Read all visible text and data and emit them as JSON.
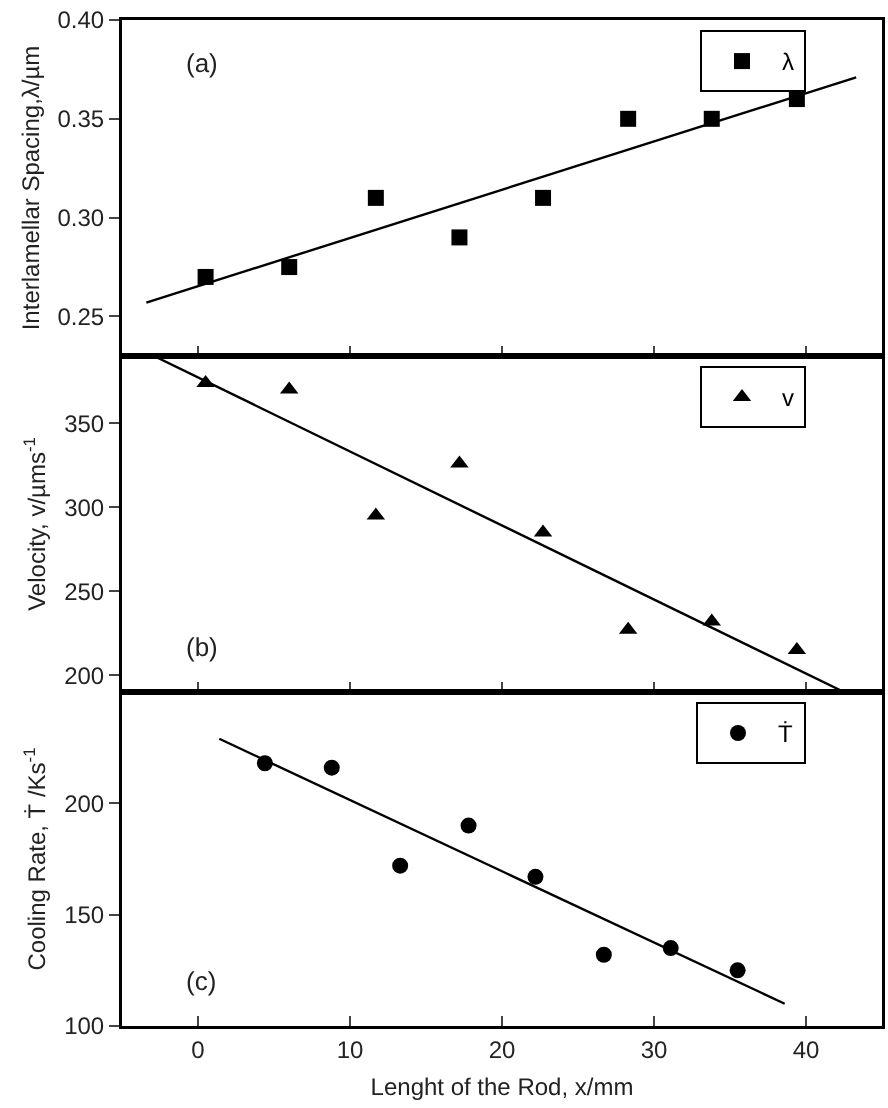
{
  "chart_data": [
    {
      "type": "scatter",
      "ylabel": "Interlamellar Spacing,λ/µm",
      "annotations": [
        "(a)"
      ],
      "xlim": [
        -5,
        45
      ],
      "xticks": [
        0,
        10,
        20,
        30,
        40
      ],
      "ylim": [
        0.23,
        0.4
      ],
      "yticks": [
        {
          "value": 0.25,
          "label": "0.25"
        },
        {
          "value": 0.3,
          "label": "0.30"
        },
        {
          "value": 0.35,
          "label": "0.35"
        },
        {
          "value": 0.4,
          "label": "0.40"
        }
      ],
      "tick_labels": "y",
      "legend": "top right",
      "grid": false,
      "series": [
        {
          "name": "λ",
          "marker": "square",
          "color": "#000000",
          "x": [
            0.5,
            6,
            11.7,
            17.2,
            22.7,
            28.3,
            33.8,
            39.4
          ],
          "values": [
            0.27,
            0.275,
            0.31,
            0.29,
            0.31,
            0.35,
            0.35,
            0.36
          ]
        },
        {
          "type": "line",
          "color": "#000000",
          "x": [
            -3.4,
            43.3
          ],
          "values": [
            0.257,
            0.371
          ]
        }
      ]
    },
    {
      "type": "scatter",
      "ylabel": "Velocity, v/µms$^{-1}$",
      "annotations": [
        "(b)"
      ],
      "xlim": [
        -5,
        45
      ],
      "xticks": [
        0,
        10,
        20,
        30,
        40
      ],
      "ylim": [
        190,
        390
      ],
      "yticks": [
        200,
        250,
        300,
        350
      ],
      "tick_labels": "y",
      "legend": "top right",
      "grid": false,
      "series": [
        {
          "name": "v",
          "marker": "triangle",
          "color": "#000000",
          "x": [
            0.5,
            6,
            11.7,
            17.2,
            22.7,
            28.3,
            33.8,
            39.4
          ],
          "values": [
            374,
            370,
            295,
            326,
            285,
            227,
            232,
            215
          ]
        },
        {
          "type": "line",
          "color": "#000000",
          "x": [
            -2.9,
            42.5
          ],
          "values": [
            390,
            190
          ]
        }
      ]
    },
    {
      "type": "scatter",
      "xlabel": "Lenght of the Rod, x/mm",
      "ylabel": "Cooling Rate, Ṫ /Ks$^{-1}$",
      "annotations": [
        "(c)"
      ],
      "xlim": [
        -5,
        45
      ],
      "xticks": [
        0,
        10,
        20,
        30,
        40
      ],
      "ylim": [
        100,
        250
      ],
      "yticks": [
        100,
        150,
        200
      ],
      "legend": "top right",
      "grid": false,
      "series": [
        {
          "name": "Ṫ",
          "marker": "circle",
          "color": "#000000",
          "x": [
            4.4,
            8.8,
            13.3,
            17.8,
            22.2,
            26.7,
            31.1,
            35.5
          ],
          "values": [
            218,
            216,
            172,
            190,
            167,
            132,
            135,
            125
          ]
        },
        {
          "type": "line",
          "color": "#000000",
          "x": [
            1.4,
            38.6
          ],
          "values": [
            229,
            110
          ]
        }
      ]
    }
  ]
}
